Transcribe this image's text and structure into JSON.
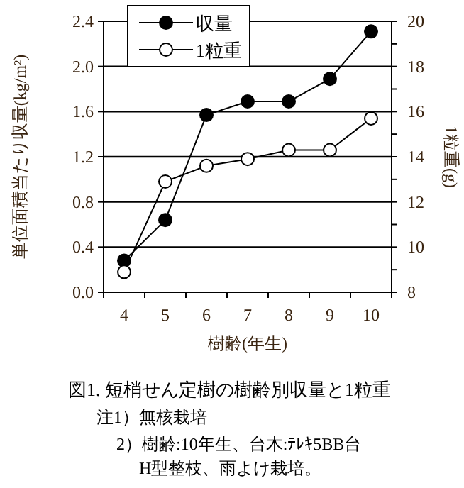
{
  "chart_data": {
    "type": "line",
    "title": "図1. 短梢せん定樹の樹齢別収量と1粒重",
    "xlabel": "樹齢(年生)",
    "ylabel": "単位面積当たり収量(kg/m²)",
    "y2label": "1粒重(g)",
    "categories": [
      "4",
      "5",
      "6",
      "7",
      "8",
      "9",
      "10"
    ],
    "series": [
      {
        "name": "収量",
        "color": "#000000",
        "marker": "circle",
        "values": [
          0.28,
          0.64,
          1.57,
          1.69,
          1.69,
          1.89,
          2.31
        ]
      },
      {
        "name": "1粒重",
        "color": "#000000",
        "marker": "circle",
        "axis": "y2",
        "values": [
          8.9,
          12.9,
          13.6,
          13.9,
          14.3,
          14.3,
          15.7
        ]
      }
    ],
    "ylim": [
      0,
      2.4
    ],
    "yticks": [
      {
        "value": 0,
        "label": "0.0"
      },
      0.4,
      0.8,
      1.2,
      1.6,
      {
        "value": 2,
        "label": "2.0"
      },
      2.4
    ],
    "y2lim": [
      8,
      20
    ],
    "y2ticks": [
      8,
      {
        "value": 9,
        "label": null
      },
      10,
      {
        "value": 11,
        "label": null
      },
      12,
      {
        "value": 13,
        "label": null
      },
      14,
      {
        "value": 15,
        "label": null
      },
      16,
      {
        "value": 17,
        "label": null
      },
      18,
      {
        "value": 19,
        "label": null
      },
      20
    ],
    "grid": "y",
    "legend": "top left",
    "annotations": [
      "注1）無核栽培",
      "2）樹齢:10年生、台木:ﾃﾚｷ5BB台",
      "H型整枝、雨よけ栽培。"
    ]
  }
}
